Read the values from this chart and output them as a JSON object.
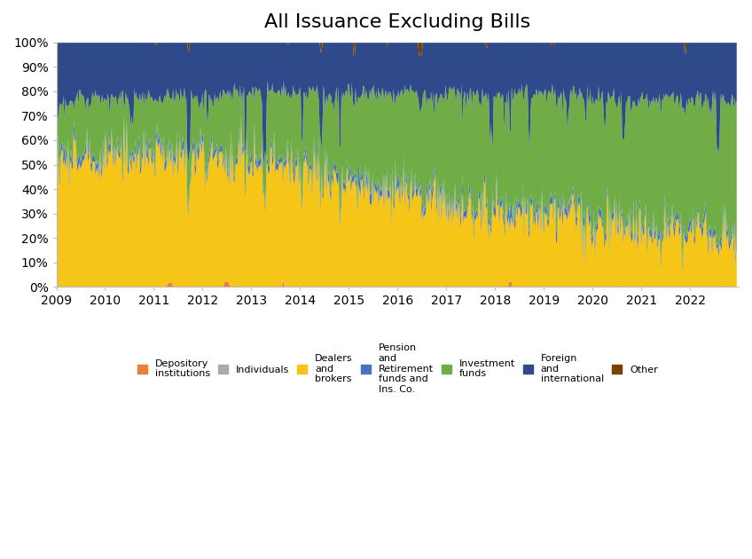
{
  "title": "All Issuance Excluding Bills",
  "title_fontsize": 16,
  "xlim": [
    2009,
    2023.0
  ],
  "ylim": [
    0,
    1.0
  ],
  "yticks": [
    0,
    0.1,
    0.2,
    0.3,
    0.4,
    0.5,
    0.6,
    0.7,
    0.8,
    0.9,
    1.0
  ],
  "yticklabels": [
    "0%",
    "10%",
    "20%",
    "30%",
    "40%",
    "50%",
    "60%",
    "70%",
    "80%",
    "90%",
    "100%"
  ],
  "xticks": [
    2009,
    2010,
    2011,
    2012,
    2013,
    2014,
    2015,
    2016,
    2017,
    2018,
    2019,
    2020,
    2021,
    2022
  ],
  "legend_labels": [
    "Depository\ninstitutions",
    "Individuals",
    "Dealers\nand\nbrokers",
    "Pension\nand\nRetirement\nfunds and\nIns. Co.",
    "Investment\nfunds",
    "Foreign\nand\ninternational",
    "Other"
  ],
  "colors": [
    "#E8823A",
    "#AAAAAA",
    "#F5C518",
    "#4472C4",
    "#70AD47",
    "#2E4A8B",
    "#7B3F00"
  ],
  "background_color": "#FFFFFF",
  "figsize": [
    8.48,
    6.3
  ],
  "dpi": 100
}
